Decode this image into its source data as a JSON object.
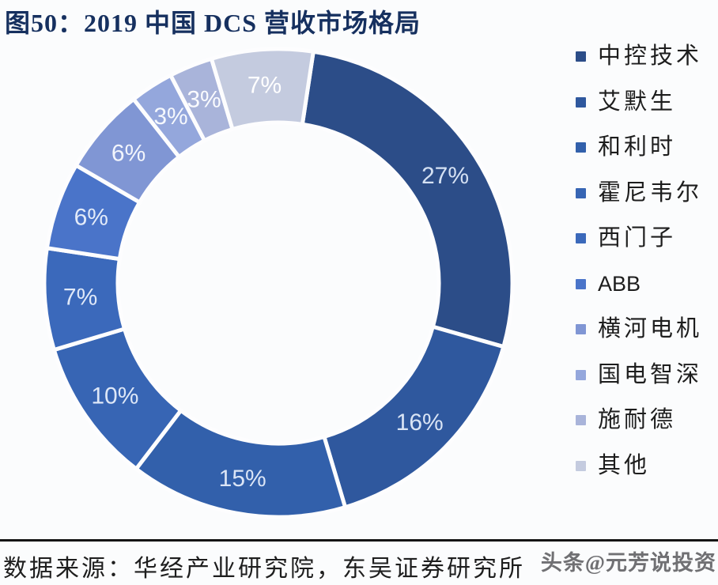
{
  "figure": {
    "title": "图50：2019 中国 DCS 营收市场格局",
    "source": "数据来源：华经产业研究院，东吴证券研究所",
    "watermark": "头条@元芳说投资"
  },
  "chart_data": {
    "type": "pie",
    "subtype": "donut",
    "title": "2019 中国 DCS 营收市场格局",
    "unit": "%",
    "direction": "clockwise",
    "start_angle_deg": 8.6,
    "legend_position": "right",
    "categories": [
      "中控技术",
      "艾默生",
      "和利时",
      "霍尼韦尔",
      "西门子",
      "ABB",
      "横河电机",
      "国电智深",
      "施耐德",
      "其他"
    ],
    "values": [
      27,
      16,
      15,
      10,
      7,
      6,
      6,
      3,
      3,
      7
    ],
    "labels": [
      "27%",
      "16%",
      "15%",
      "10%",
      "7%",
      "6%",
      "6%",
      "3%",
      "3%",
      "7%"
    ],
    "colors": [
      "#2c4d88",
      "#2f589e",
      "#3260ab",
      "#3765b4",
      "#3b69bb",
      "#4a74c9",
      "#8096d4",
      "#94a7dc",
      "#a9b4da",
      "#c4cbdf"
    ],
    "label_colors": [
      "#d5e1f3",
      "#d9e4f5",
      "#dbe5f6",
      "#dde7f7",
      "#dfe8f8",
      "#e3ebf9",
      "#f2f5fc",
      "#f5f8fd",
      "#fafbfe",
      "#ffffff"
    ]
  }
}
